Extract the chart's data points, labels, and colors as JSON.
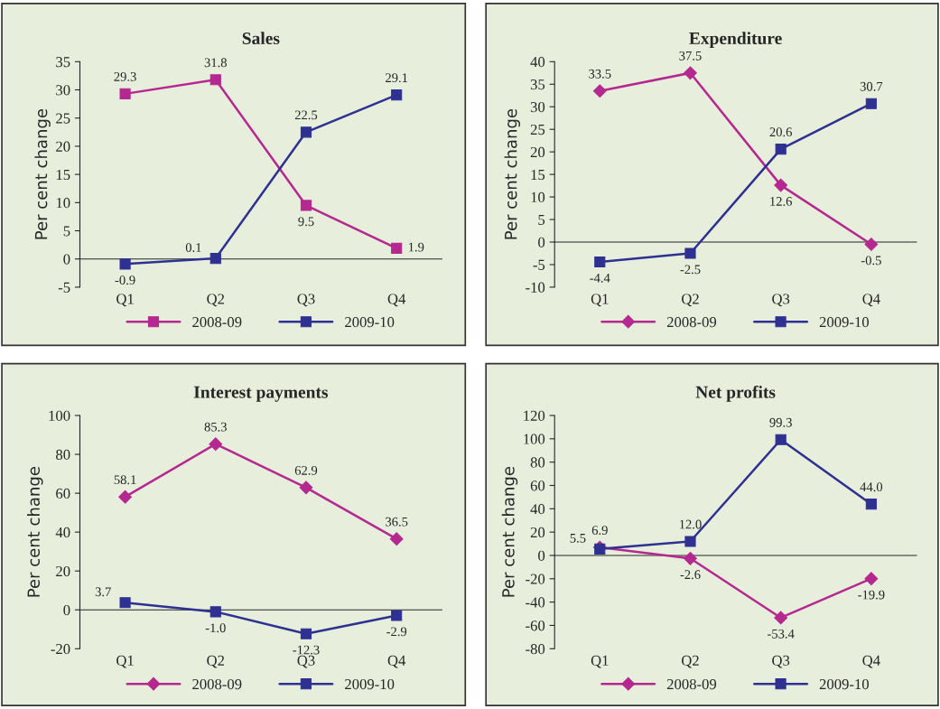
{
  "chart_data": [
    {
      "type": "line",
      "title": "Sales",
      "ylabel": "Per cent change",
      "categories": [
        "Q1",
        "Q2",
        "Q3",
        "Q4"
      ],
      "ylim": [
        -5,
        35
      ],
      "yticks": [
        -5,
        0,
        5,
        10,
        15,
        20,
        25,
        30,
        35
      ],
      "legend": "bottom",
      "series": [
        {
          "name": "2008-09",
          "color": "#b5288f",
          "marker": "square",
          "values": [
            29.3,
            31.8,
            9.5,
            1.9
          ],
          "value_labels": [
            "29.3",
            "31.8",
            "9.5",
            "1.9"
          ]
        },
        {
          "name": "2009-10",
          "color": "#2e3192",
          "marker": "square",
          "values": [
            -0.9,
            0.1,
            22.5,
            29.1
          ],
          "value_labels": [
            "-0.9",
            "0.1",
            "22.5",
            "29.1"
          ]
        }
      ]
    },
    {
      "type": "line",
      "title": "Expenditure",
      "ylabel": "Per cent change",
      "categories": [
        "Q1",
        "Q2",
        "Q3",
        "Q4"
      ],
      "ylim": [
        -10,
        40
      ],
      "yticks": [
        -10,
        -5,
        0,
        5,
        10,
        15,
        20,
        25,
        30,
        35,
        40
      ],
      "legend": "bottom",
      "series": [
        {
          "name": "2008-09",
          "color": "#b5288f",
          "marker": "diamond",
          "values": [
            33.5,
            37.5,
            12.6,
            -0.5
          ],
          "value_labels": [
            "33.5",
            "37.5",
            "12.6",
            "-0.5"
          ]
        },
        {
          "name": "2009-10",
          "color": "#2e3192",
          "marker": "square",
          "values": [
            -4.4,
            -2.5,
            20.6,
            30.7
          ],
          "value_labels": [
            "-4.4",
            "-2.5",
            "20.6",
            "30.7"
          ]
        }
      ]
    },
    {
      "type": "line",
      "title": "Interest payments",
      "ylabel": "Per cent change",
      "categories": [
        "Q1",
        "Q2",
        "Q3",
        "Q4"
      ],
      "ylim": [
        -20,
        100
      ],
      "yticks": [
        -20,
        0,
        20,
        40,
        60,
        80,
        100
      ],
      "legend": "bottom",
      "series": [
        {
          "name": "2008-09",
          "color": "#b5288f",
          "marker": "diamond",
          "values": [
            58.1,
            85.3,
            62.9,
            36.5
          ],
          "value_labels": [
            "58.1",
            "85.3",
            "62.9",
            "36.5"
          ]
        },
        {
          "name": "2009-10",
          "color": "#2e3192",
          "marker": "square",
          "values": [
            3.7,
            -1.0,
            -12.3,
            -2.9
          ],
          "value_labels": [
            "3.7",
            "-1.0",
            "-12.3",
            "-2.9"
          ]
        }
      ]
    },
    {
      "type": "line",
      "title": "Net profits",
      "ylabel": "Per cent change",
      "categories": [
        "Q1",
        "Q2",
        "Q3",
        "Q4"
      ],
      "ylim": [
        -80,
        120
      ],
      "yticks": [
        -80,
        -60,
        -40,
        -20,
        0,
        20,
        40,
        60,
        80,
        100,
        120
      ],
      "legend": "bottom",
      "series": [
        {
          "name": "2008-09",
          "color": "#b5288f",
          "marker": "diamond",
          "values": [
            6.9,
            -2.6,
            -53.4,
            -19.9
          ],
          "value_labels": [
            "6.9",
            "-2.6",
            "-53.4",
            "-19.9"
          ]
        },
        {
          "name": "2009-10",
          "color": "#2e3192",
          "marker": "square",
          "values": [
            5.5,
            12.0,
            99.3,
            44.0
          ],
          "value_labels": [
            "5.5",
            "12.0",
            "99.3",
            "44.0"
          ]
        }
      ]
    }
  ]
}
